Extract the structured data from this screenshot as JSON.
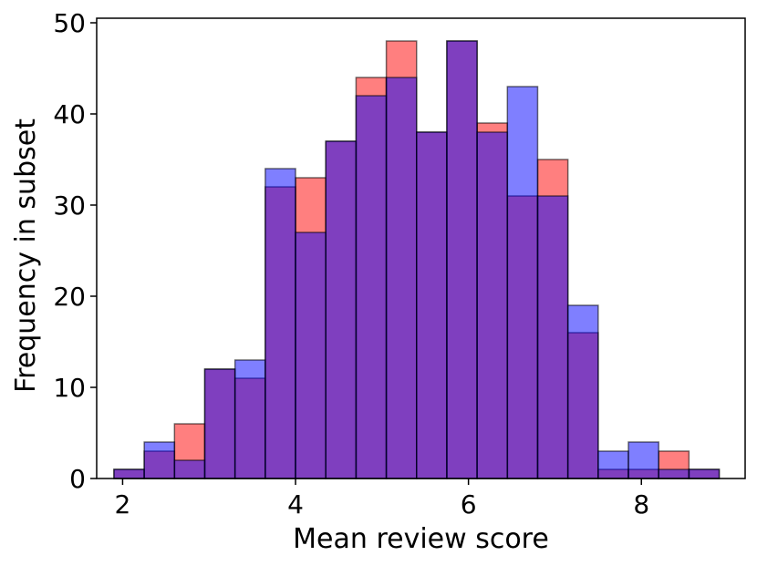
{
  "chart_data": {
    "type": "histogram",
    "xlabel": "Mean review score",
    "ylabel": "Frequency in subset",
    "xlim": [
      1.7,
      9.2
    ],
    "ylim": [
      0,
      50.5
    ],
    "xticks": [
      2,
      4,
      6,
      8
    ],
    "yticks": [
      0,
      10,
      20,
      30,
      40,
      50
    ],
    "bin_edges": [
      1.9,
      2.25,
      2.6,
      2.95,
      3.3,
      3.65,
      4.0,
      4.35,
      4.7,
      5.05,
      5.4,
      5.75,
      6.1,
      6.45,
      6.8,
      7.15,
      7.5,
      7.85,
      8.2,
      8.55,
      8.9
    ],
    "series": [
      {
        "color": "#ff0000",
        "values": [
          1,
          3,
          6,
          12,
          11,
          32,
          33,
          37,
          44,
          48,
          38,
          48,
          39,
          31,
          35,
          16,
          1,
          1,
          3,
          1
        ]
      },
      {
        "color": "#0000ff",
        "values": [
          1,
          4,
          2,
          12,
          13,
          34,
          27,
          37,
          42,
          44,
          38,
          48,
          38,
          43,
          31,
          19,
          3,
          4,
          1,
          1
        ]
      }
    ],
    "alpha": 0.5,
    "edge_color": "#000000",
    "grid": false,
    "legend": "none"
  }
}
